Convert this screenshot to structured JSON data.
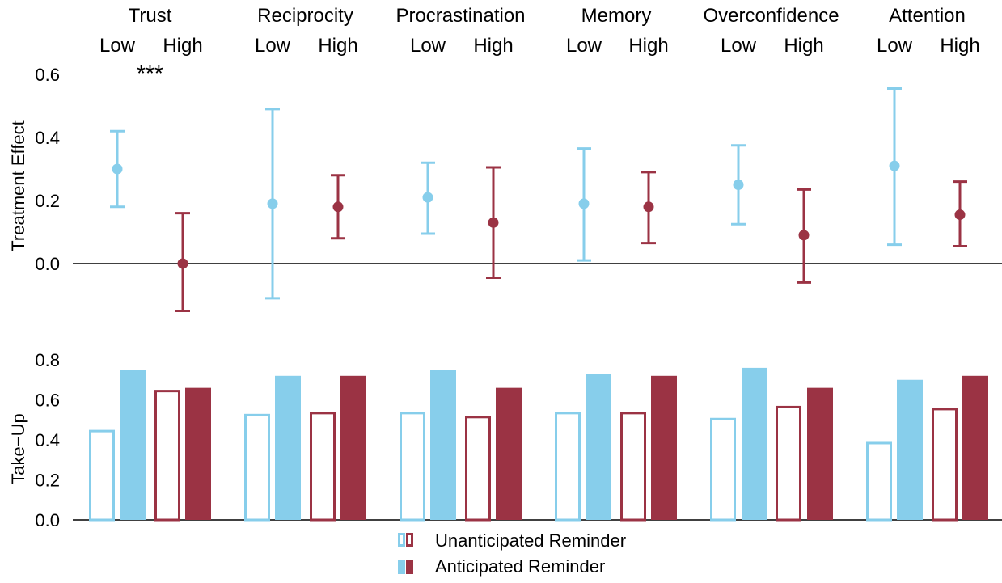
{
  "colors": {
    "low": "#87ceeb",
    "high": "#9b3344",
    "axis": "#000000"
  },
  "chart_data": [
    {
      "type": "scatter",
      "variant": "point-with-error-bars",
      "ylabel": "Treatment Effect",
      "yticks": [
        "0.0",
        "0.2",
        "0.4",
        "0.6"
      ],
      "ylim": [
        -0.17,
        0.62
      ],
      "grid": false,
      "reference_line": 0,
      "groups": [
        {
          "title": "Trust",
          "annotation": "***",
          "points": [
            {
              "label": "Low",
              "estimate": 0.3,
              "ci_low": 0.18,
              "ci_high": 0.42
            },
            {
              "label": "High",
              "estimate": 0.0,
              "ci_low": -0.15,
              "ci_high": 0.16
            }
          ]
        },
        {
          "title": "Reciprocity",
          "annotation": "",
          "points": [
            {
              "label": "Low",
              "estimate": 0.19,
              "ci_low": -0.11,
              "ci_high": 0.49
            },
            {
              "label": "High",
              "estimate": 0.18,
              "ci_low": 0.08,
              "ci_high": 0.28
            }
          ]
        },
        {
          "title": "Procrastination",
          "annotation": "",
          "points": [
            {
              "label": "Low",
              "estimate": 0.21,
              "ci_low": 0.095,
              "ci_high": 0.32
            },
            {
              "label": "High",
              "estimate": 0.13,
              "ci_low": -0.045,
              "ci_high": 0.305
            }
          ]
        },
        {
          "title": "Memory",
          "annotation": "",
          "points": [
            {
              "label": "Low",
              "estimate": 0.19,
              "ci_low": 0.01,
              "ci_high": 0.365
            },
            {
              "label": "High",
              "estimate": 0.18,
              "ci_low": 0.065,
              "ci_high": 0.29
            }
          ]
        },
        {
          "title": "Overconfidence",
          "annotation": "",
          "points": [
            {
              "label": "Low",
              "estimate": 0.25,
              "ci_low": 0.125,
              "ci_high": 0.375
            },
            {
              "label": "High",
              "estimate": 0.09,
              "ci_low": -0.06,
              "ci_high": 0.235
            }
          ]
        },
        {
          "title": "Attention",
          "annotation": "",
          "points": [
            {
              "label": "Low",
              "estimate": 0.31,
              "ci_low": 0.06,
              "ci_high": 0.555
            },
            {
              "label": "High",
              "estimate": 0.155,
              "ci_low": 0.055,
              "ci_high": 0.26
            }
          ]
        }
      ]
    },
    {
      "type": "bar",
      "ylabel": "Take−Up",
      "yticks": [
        "0.0",
        "0.2",
        "0.4",
        "0.6",
        "0.8"
      ],
      "ylim": [
        0,
        0.8
      ],
      "grid": false,
      "series_style": {
        "Unanticipated Reminder": "outline",
        "Anticipated Reminder": "filled"
      },
      "groups": [
        {
          "title": "Trust",
          "values": [
            {
              "level": "Low",
              "series": "Unanticipated Reminder",
              "value": 0.45
            },
            {
              "level": "Low",
              "series": "Anticipated Reminder",
              "value": 0.75
            },
            {
              "level": "High",
              "series": "Unanticipated Reminder",
              "value": 0.65
            },
            {
              "level": "High",
              "series": "Anticipated Reminder",
              "value": 0.66
            }
          ]
        },
        {
          "title": "Reciprocity",
          "values": [
            {
              "level": "Low",
              "series": "Unanticipated Reminder",
              "value": 0.53
            },
            {
              "level": "Low",
              "series": "Anticipated Reminder",
              "value": 0.72
            },
            {
              "level": "High",
              "series": "Unanticipated Reminder",
              "value": 0.54
            },
            {
              "level": "High",
              "series": "Anticipated Reminder",
              "value": 0.72
            }
          ]
        },
        {
          "title": "Procrastination",
          "values": [
            {
              "level": "Low",
              "series": "Unanticipated Reminder",
              "value": 0.54
            },
            {
              "level": "Low",
              "series": "Anticipated Reminder",
              "value": 0.75
            },
            {
              "level": "High",
              "series": "Unanticipated Reminder",
              "value": 0.52
            },
            {
              "level": "High",
              "series": "Anticipated Reminder",
              "value": 0.66
            }
          ]
        },
        {
          "title": "Memory",
          "values": [
            {
              "level": "Low",
              "series": "Unanticipated Reminder",
              "value": 0.54
            },
            {
              "level": "Low",
              "series": "Anticipated Reminder",
              "value": 0.73
            },
            {
              "level": "High",
              "series": "Unanticipated Reminder",
              "value": 0.54
            },
            {
              "level": "High",
              "series": "Anticipated Reminder",
              "value": 0.72
            }
          ]
        },
        {
          "title": "Overconfidence",
          "values": [
            {
              "level": "Low",
              "series": "Unanticipated Reminder",
              "value": 0.51
            },
            {
              "level": "Low",
              "series": "Anticipated Reminder",
              "value": 0.76
            },
            {
              "level": "High",
              "series": "Unanticipated Reminder",
              "value": 0.57
            },
            {
              "level": "High",
              "series": "Anticipated Reminder",
              "value": 0.66
            }
          ]
        },
        {
          "title": "Attention",
          "values": [
            {
              "level": "Low",
              "series": "Unanticipated Reminder",
              "value": 0.39
            },
            {
              "level": "Low",
              "series": "Anticipated Reminder",
              "value": 0.7
            },
            {
              "level": "High",
              "series": "Unanticipated Reminder",
              "value": 0.56
            },
            {
              "level": "High",
              "series": "Anticipated Reminder",
              "value": 0.72
            }
          ]
        }
      ]
    }
  ],
  "legend": {
    "placement": "bottom-center",
    "items": [
      {
        "label": "Unanticipated Reminder",
        "style": "outline"
      },
      {
        "label": "Anticipated Reminder",
        "style": "filled"
      }
    ]
  }
}
